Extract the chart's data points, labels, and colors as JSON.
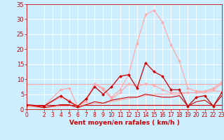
{
  "bg_color": "#cceeff",
  "grid_color": "#ffffff",
  "xlabel": "Vent moyen/en rafales ( km/h )",
  "xlabel_color": "#cc0000",
  "xlim": [
    0,
    23
  ],
  "ylim": [
    0,
    35
  ],
  "yticks": [
    0,
    5,
    10,
    15,
    20,
    25,
    30,
    35
  ],
  "xticks": [
    0,
    2,
    3,
    4,
    5,
    6,
    7,
    8,
    9,
    10,
    11,
    12,
    13,
    14,
    15,
    16,
    17,
    18,
    19,
    20,
    21,
    22,
    23
  ],
  "series": [
    {
      "x": [
        0,
        1,
        2,
        3,
        4,
        5,
        6,
        7,
        8,
        9,
        10,
        11,
        12,
        13,
        14,
        15,
        16,
        17,
        18,
        19,
        20,
        21,
        22,
        23
      ],
      "y": [
        1.5,
        1.5,
        1.5,
        1.5,
        1.5,
        1.5,
        1.5,
        1.5,
        1.5,
        1.5,
        1.5,
        1.5,
        1.5,
        1.5,
        1.5,
        1.5,
        1.5,
        1.5,
        1.5,
        1.5,
        1.5,
        1.5,
        1.5,
        1.5
      ],
      "color": "#cc0000",
      "linewidth": 0.8,
      "marker": null,
      "markersize": 0
    },
    {
      "x": [
        0,
        1,
        2,
        3,
        4,
        5,
        6,
        7,
        8,
        9,
        10,
        11,
        12,
        13,
        14,
        15,
        16,
        17,
        18,
        19,
        20,
        21,
        22,
        23
      ],
      "y": [
        8.5,
        8.5,
        8.5,
        8.5,
        8.5,
        8.5,
        8.5,
        8.5,
        8.5,
        8.5,
        8.5,
        8.5,
        8.5,
        8.5,
        8.5,
        8.5,
        8.5,
        8.5,
        8.5,
        8.5,
        8.5,
        8.5,
        8.5,
        8.5
      ],
      "color": "#ffaaaa",
      "linewidth": 0.8,
      "marker": null,
      "markersize": 0
    },
    {
      "x": [
        0,
        2,
        4,
        5,
        6,
        7,
        8,
        9,
        10,
        11,
        12,
        13,
        14,
        15,
        16,
        17,
        18,
        19,
        20,
        21,
        22,
        23
      ],
      "y": [
        1.0,
        1.0,
        6.5,
        7.0,
        1.0,
        3.0,
        8.5,
        7.0,
        4.0,
        6.5,
        11.5,
        22.0,
        31.5,
        33.0,
        29.0,
        21.5,
        16.0,
        7.0,
        6.0,
        6.0,
        7.0,
        9.0
      ],
      "color": "#ffaaaa",
      "linewidth": 0.9,
      "marker": "D",
      "markersize": 2.0
    },
    {
      "x": [
        0,
        2,
        4,
        5,
        6,
        7,
        8,
        9,
        10,
        11,
        12,
        13,
        14,
        15,
        16,
        17,
        18,
        19,
        20,
        21,
        22,
        23
      ],
      "y": [
        1.0,
        1.0,
        4.0,
        3.0,
        1.0,
        2.5,
        8.5,
        6.5,
        3.5,
        5.5,
        8.5,
        7.5,
        8.5,
        8.0,
        6.5,
        5.5,
        5.5,
        5.5,
        5.5,
        6.0,
        6.5,
        8.5
      ],
      "color": "#ffaaaa",
      "linewidth": 0.9,
      "marker": "D",
      "markersize": 2.0
    },
    {
      "x": [
        0,
        2,
        4,
        5,
        6,
        7,
        8,
        9,
        10,
        11,
        12,
        13,
        14,
        15,
        16,
        17,
        18,
        19,
        20,
        21,
        22,
        23
      ],
      "y": [
        1.0,
        0.5,
        1.0,
        1.0,
        1.0,
        1.5,
        2.0,
        2.0,
        2.5,
        3.0,
        3.5,
        4.0,
        4.5,
        5.0,
        5.0,
        5.0,
        5.0,
        5.5,
        5.5,
        5.5,
        6.0,
        6.0
      ],
      "color": "#ffaaaa",
      "linewidth": 0.8,
      "marker": null,
      "markersize": 0
    },
    {
      "x": [
        0,
        2,
        4,
        5,
        6,
        7,
        8,
        9,
        10,
        11,
        12,
        13,
        14,
        15,
        16,
        17,
        18,
        19,
        20,
        21,
        22,
        23
      ],
      "y": [
        1.5,
        1.0,
        4.5,
        2.5,
        1.0,
        3.5,
        7.5,
        5.0,
        7.5,
        11.0,
        11.5,
        7.0,
        15.5,
        12.5,
        11.0,
        6.5,
        6.5,
        1.0,
        4.0,
        4.5,
        1.0,
        5.5
      ],
      "color": "#cc0000",
      "linewidth": 0.9,
      "marker": "D",
      "markersize": 2.0
    },
    {
      "x": [
        0,
        2,
        4,
        5,
        6,
        7,
        8,
        9,
        10,
        11,
        12,
        13,
        14,
        15,
        16,
        17,
        18,
        19,
        20,
        21,
        22,
        23
      ],
      "y": [
        1.5,
        0.5,
        1.5,
        1.5,
        0.5,
        1.5,
        2.5,
        2.0,
        3.0,
        3.5,
        4.0,
        4.0,
        5.0,
        4.5,
        4.0,
        4.0,
        4.5,
        1.0,
        2.5,
        3.0,
        1.0,
        4.5
      ],
      "color": "#cc0000",
      "linewidth": 0.8,
      "marker": null,
      "markersize": 0
    }
  ],
  "tick_color": "#cc0000",
  "ytick_fontsize": 6.0,
  "xtick_fontsize": 5.5,
  "xlabel_fontsize": 6.5
}
